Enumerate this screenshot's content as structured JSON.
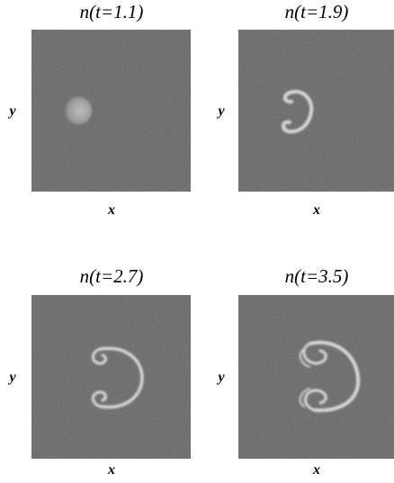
{
  "panels": [
    {
      "title": "n(t=1.1)",
      "x_label": "x",
      "y_label": "y"
    },
    {
      "title": "n(t=1.9)",
      "x_label": "x",
      "y_label": "y"
    },
    {
      "title": "n(t=2.7)",
      "x_label": "x",
      "y_label": "y"
    },
    {
      "title": "n(t=3.5)",
      "x_label": "x",
      "y_label": "y"
    }
  ]
}
